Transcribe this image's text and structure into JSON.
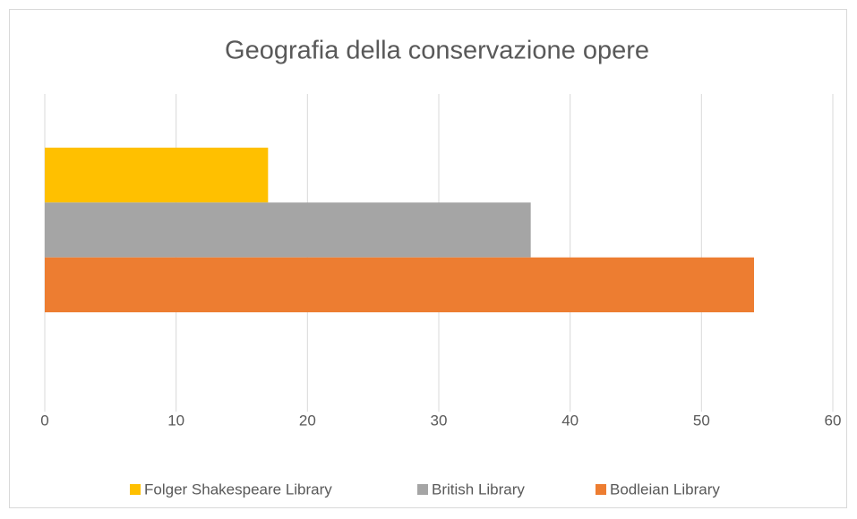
{
  "chart_data": {
    "type": "bar",
    "orientation": "horizontal",
    "title": "Geografia della conservazione opere",
    "categories": [
      null
    ],
    "series": [
      {
        "name": "Folger Shakespeare Library",
        "color": "#ffc000",
        "values": [
          17
        ]
      },
      {
        "name": "British Library",
        "color": "#a5a5a5",
        "values": [
          37
        ]
      },
      {
        "name": "Bodleian Library",
        "color": "#ed7d31",
        "values": [
          54
        ]
      }
    ],
    "xlim": [
      0,
      60
    ],
    "xticks": [
      0,
      10,
      20,
      30,
      40,
      50,
      60
    ],
    "grid": true,
    "legend": "bottom"
  }
}
